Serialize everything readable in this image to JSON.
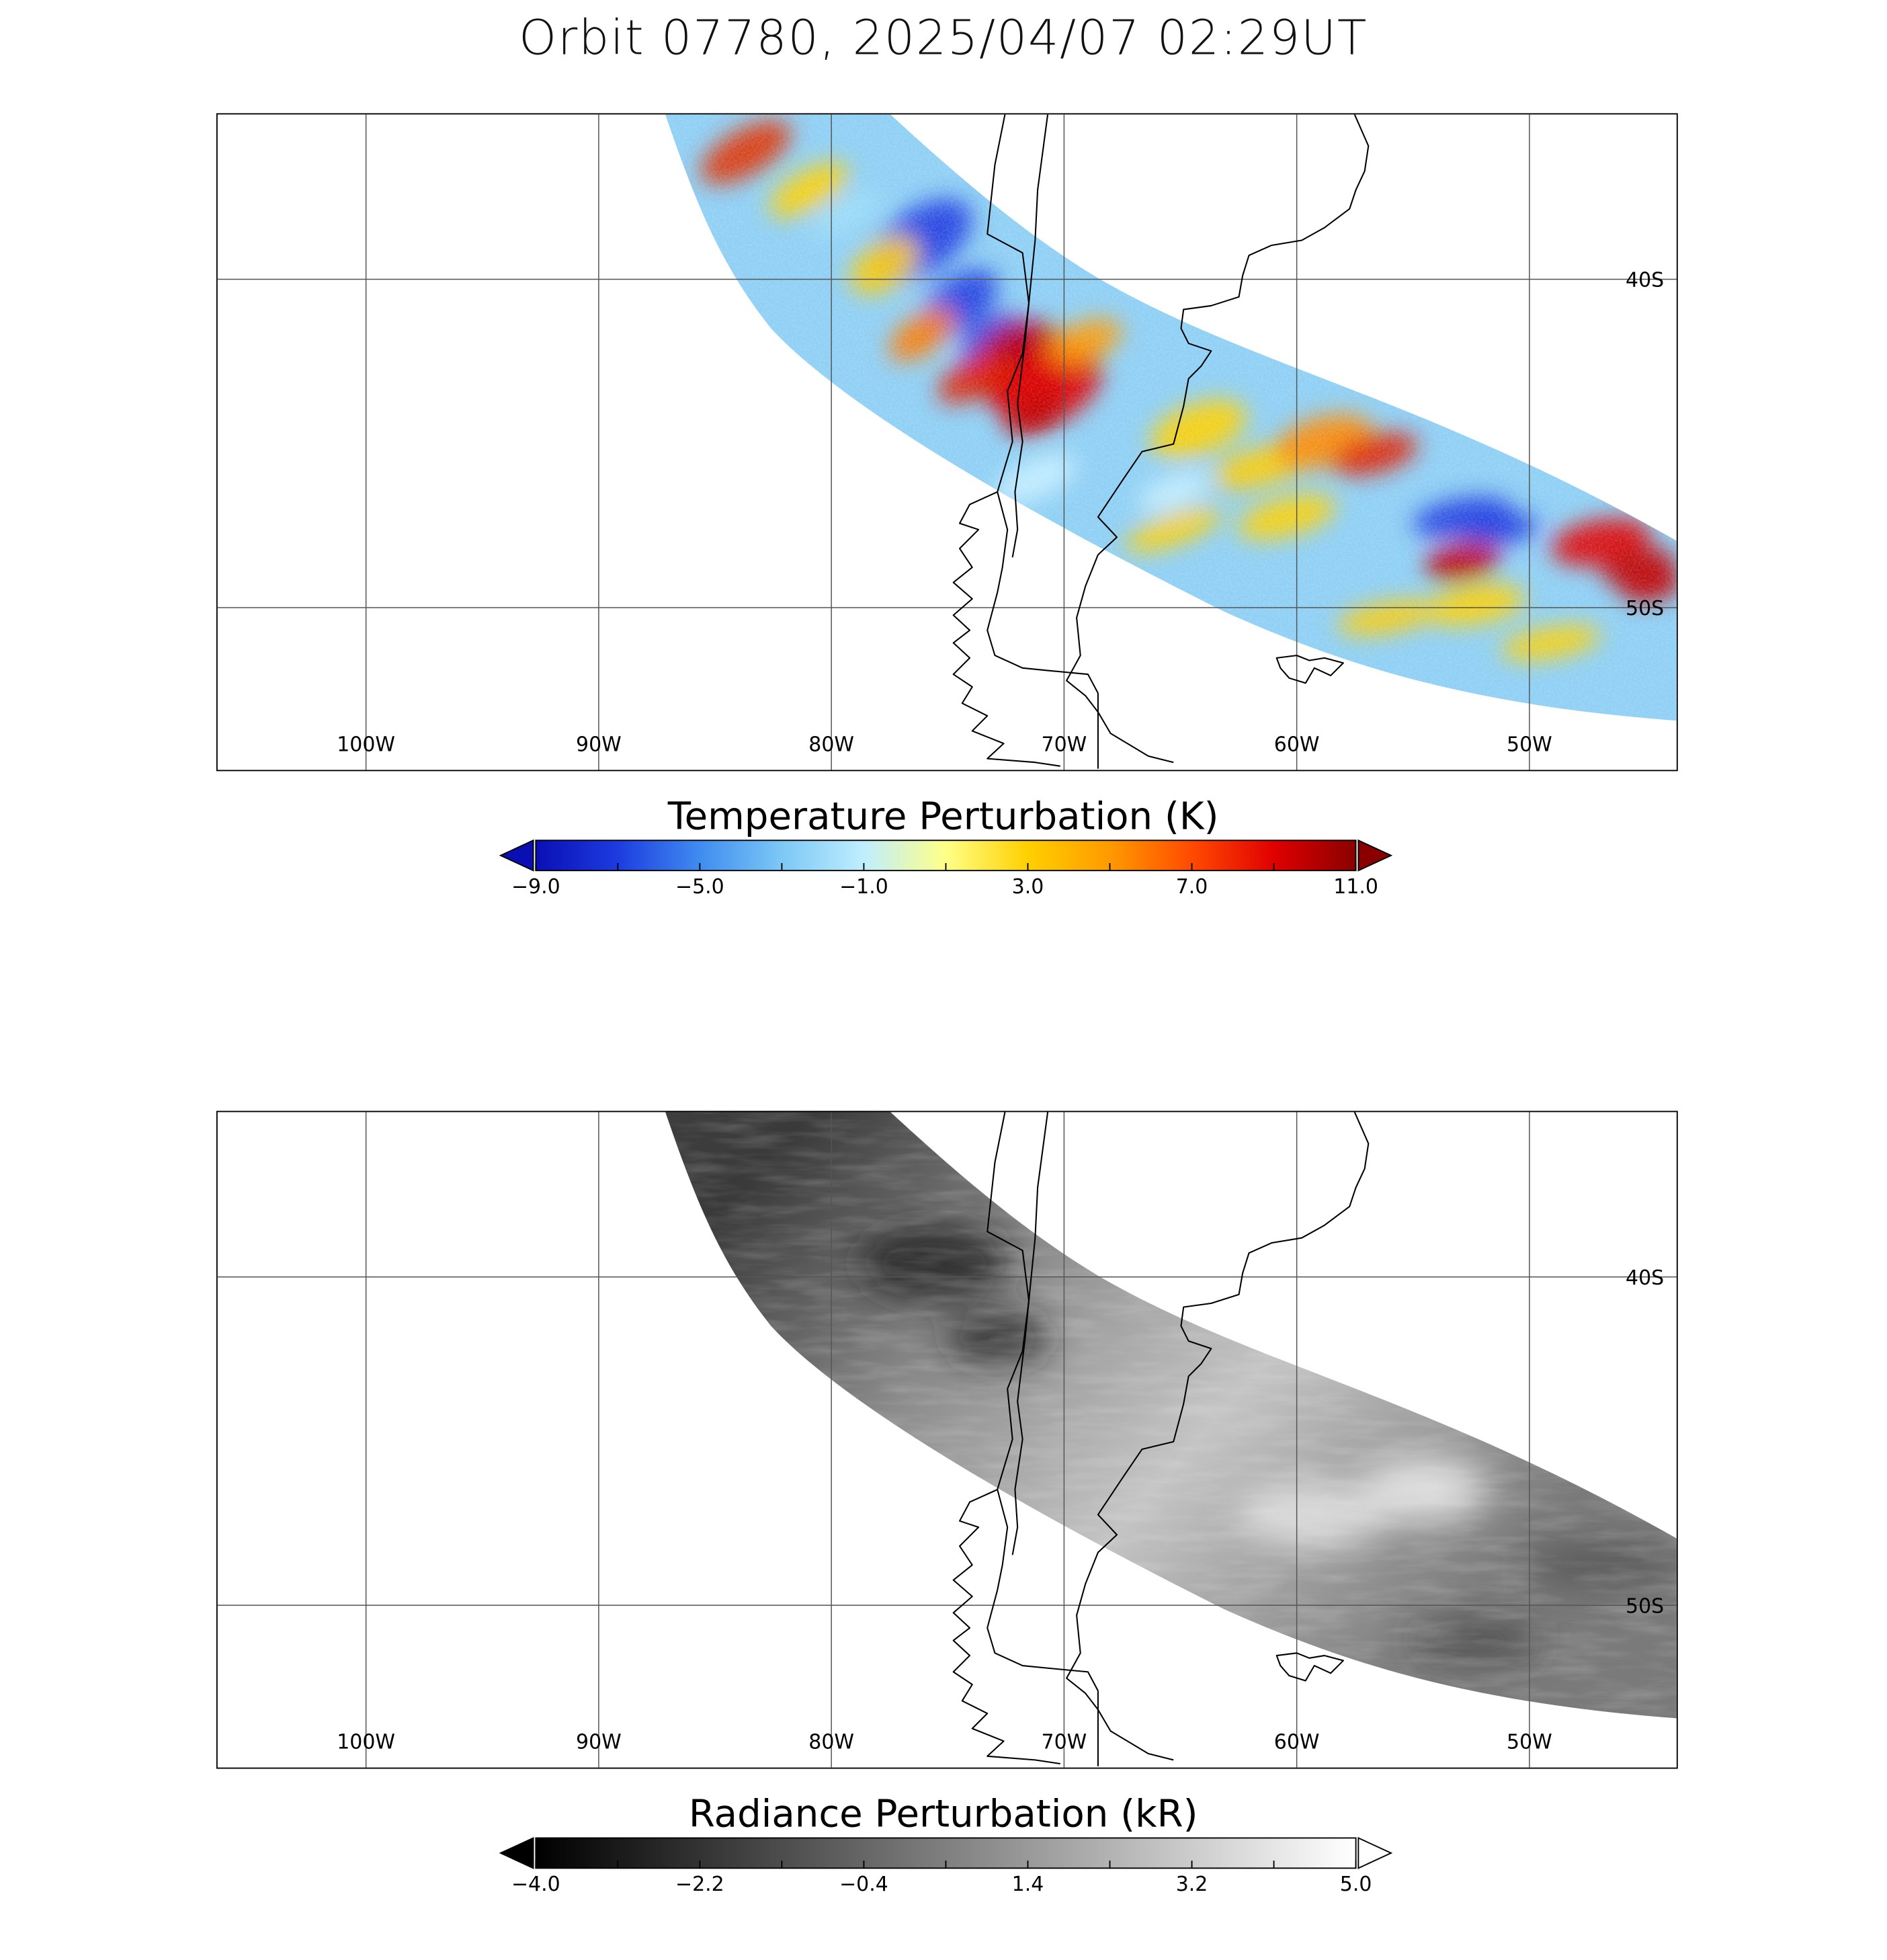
{
  "title": "Orbit 07780, 2025/04/07 02:29UT",
  "maps": [
    {
      "id": "temperature",
      "colorbar_title": "Temperature Perturbation (K)",
      "colorbar_ticks": [
        "−9.0",
        "−5.0",
        "−1.0",
        "3.0",
        "7.0",
        "11.0"
      ],
      "colormap": [
        "#0a0fb4",
        "#1d3ce0",
        "#3f8cf0",
        "#7cc8f6",
        "#bfeefe",
        "#ffff88",
        "#ffd000",
        "#ff9a00",
        "#ff4a00",
        "#e00000",
        "#8a0000"
      ],
      "under_color": "#0a0fb4",
      "over_color": "#8a0000"
    },
    {
      "id": "radiance",
      "colorbar_title": "Radiance Perturbation (kR)",
      "colorbar_ticks": [
        "−4.0",
        "−2.2",
        "−0.4",
        "1.4",
        "3.2",
        "5.0"
      ],
      "colormap": [
        "#000000",
        "#ffffff"
      ],
      "under_color": "#000000",
      "over_color": "#ffffff"
    }
  ],
  "longitude_labels": [
    "100W",
    "90W",
    "80W",
    "70W",
    "60W",
    "50W"
  ],
  "latitude_labels": [
    "40S",
    "50S"
  ]
}
